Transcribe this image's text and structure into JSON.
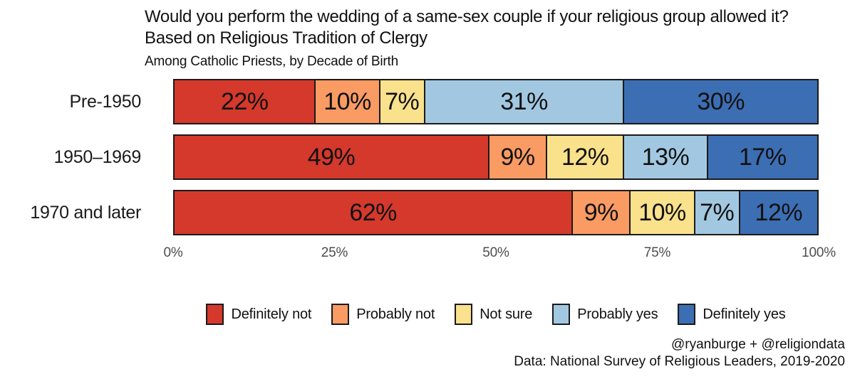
{
  "title": {
    "line1": "Would you perform the wedding of a same-sex couple if your religious group allowed it?",
    "line2": "Based on Religious Tradition of Clergy",
    "subtitle": "Among Catholic Priests, by Decade of Birth"
  },
  "chart_data": {
    "type": "bar",
    "stacked": true,
    "orientation": "horizontal",
    "categories": [
      "Pre-1950",
      "1950–1969",
      "1970 and later"
    ],
    "series": [
      {
        "name": "Definitely not",
        "color": "#d4392c",
        "values": [
          22,
          49,
          62
        ]
      },
      {
        "name": "Probably not",
        "color": "#f99b63",
        "values": [
          10,
          9,
          9
        ]
      },
      {
        "name": "Not sure",
        "color": "#fae18c",
        "values": [
          7,
          12,
          10
        ]
      },
      {
        "name": "Probably yes",
        "color": "#a2c8e1",
        "values": [
          31,
          13,
          7
        ]
      },
      {
        "name": "Definitely yes",
        "color": "#3c6eb4",
        "values": [
          30,
          17,
          12
        ]
      }
    ],
    "value_suffix": "%",
    "x_ticks": [
      "0%",
      "25%",
      "50%",
      "75%",
      "100%"
    ],
    "x_tick_positions": [
      0,
      25,
      50,
      75,
      100
    ],
    "xlim": [
      0,
      100
    ],
    "grid": false,
    "legend_position": "bottom",
    "bar_border_color": "#1a1a1a"
  },
  "credits": {
    "line1": "@ryanburge + @religiondata",
    "line2": "Data: National Survey of Religious Leaders, 2019-2020"
  }
}
